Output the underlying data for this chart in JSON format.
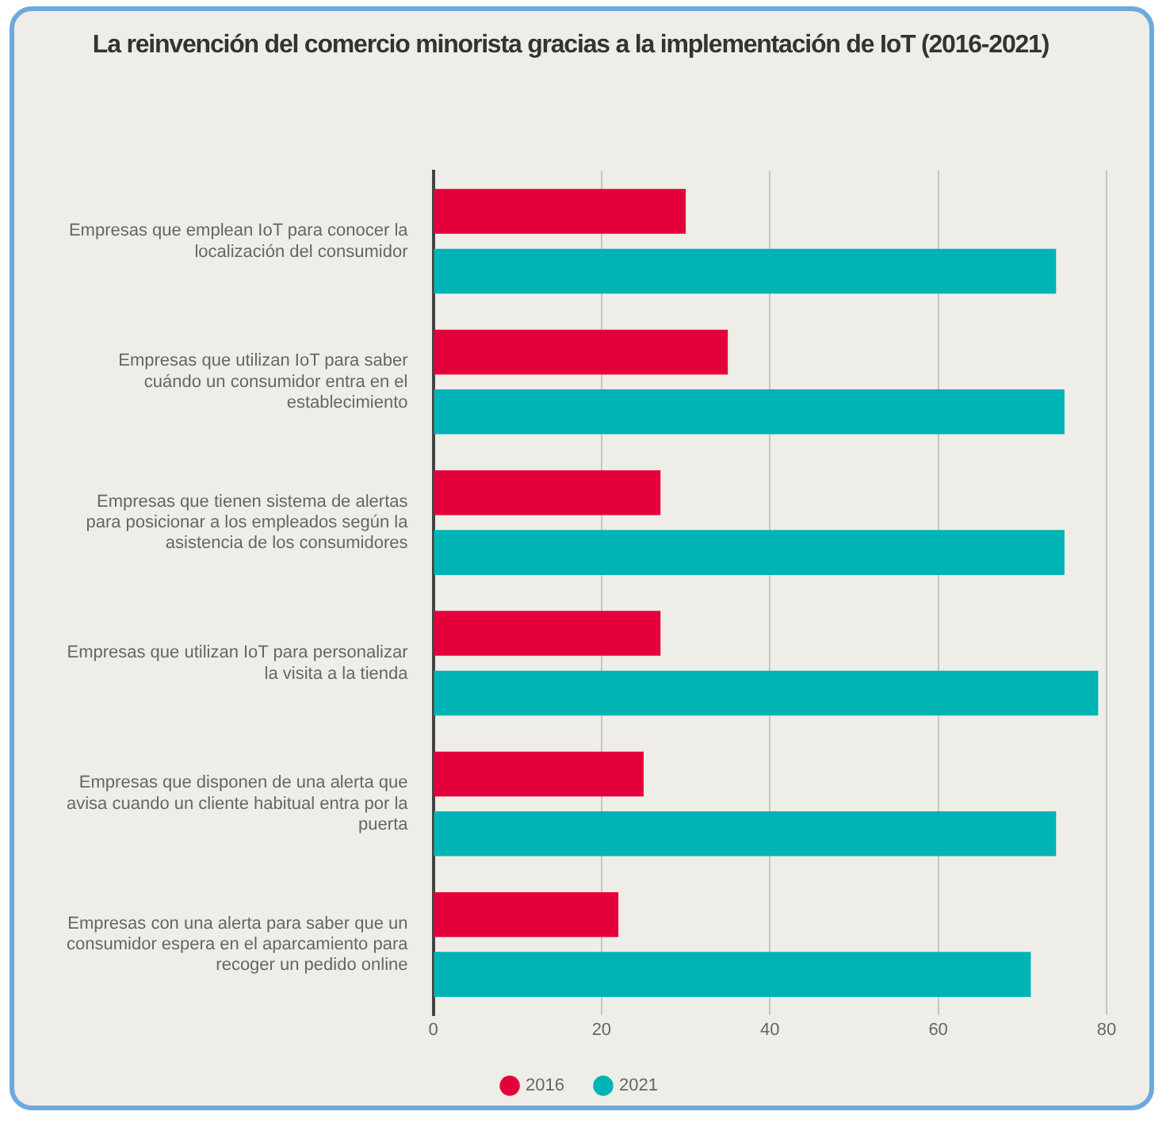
{
  "chart_data": {
    "type": "bar",
    "orientation": "horizontal",
    "title": "La reinvención del comercio minorista gracias a la implementación de IoT (2016-2021)",
    "categories": [
      "Empresas que emplean IoT para conocer la localización del consumidor",
      "Empresas que utilizan IoT para saber cuándo un consumidor entra en el establecimiento",
      "Empresas que tienen sistema de alertas para posicionar a los empleados según la asistencia de los consumidores",
      "Empresas que utilizan IoT para personalizar la visita a la tienda",
      "Empresas que disponen de una alerta que avisa cuando un cliente habitual entra por la puerta",
      "Empresas con una alerta para saber que un consumidor espera en el aparcamiento para recoger un pedido online"
    ],
    "series": [
      {
        "name": "2016",
        "color": "#e4003a",
        "values": [
          30,
          35,
          27,
          27,
          25,
          22
        ]
      },
      {
        "name": "2021",
        "color": "#00b3b5",
        "values": [
          74,
          75,
          75,
          79,
          74,
          71
        ]
      }
    ],
    "xlim": [
      0,
      80
    ],
    "xticks": [
      0,
      20,
      40,
      60,
      80
    ],
    "grid": "x",
    "legend": "bottom"
  }
}
